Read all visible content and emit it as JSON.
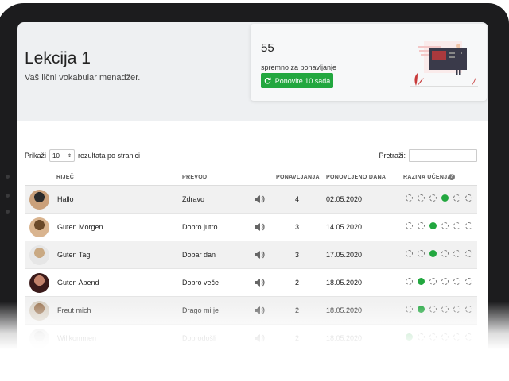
{
  "header": {
    "title": "Lekcija 1",
    "subtitle": "Vaš lični vokabular menadžer."
  },
  "review": {
    "count": "55",
    "label": "spremno za ponavljanje",
    "button_label": "Ponovite 10 sada"
  },
  "controls": {
    "show_label": "Prikaži",
    "page_size": "10",
    "per_page_label": "rezultata po stranici",
    "search_label": "Pretraži:",
    "search_value": ""
  },
  "table": {
    "headers": {
      "word": "RIJEČ",
      "translation": "PREVOD",
      "repetitions": "PONAVLJANJA",
      "repeated_on": "PONOVLJENO DANA",
      "level": "RAZINA UČENJA"
    },
    "rows": [
      {
        "word": "Hallo",
        "translation": "Zdravo",
        "repetitions": "4",
        "date": "02.05.2020",
        "level": 4
      },
      {
        "word": "Guten Morgen",
        "translation": "Dobro jutro",
        "repetitions": "3",
        "date": "14.05.2020",
        "level": 3
      },
      {
        "word": "Guten Tag",
        "translation": "Dobar dan",
        "repetitions": "3",
        "date": "17.05.2020",
        "level": 3
      },
      {
        "word": "Guten Abend",
        "translation": "Dobro veče",
        "repetitions": "2",
        "date": "18.05.2020",
        "level": 2
      },
      {
        "word": "Freut mich",
        "translation": "Drago mi je",
        "repetitions": "2",
        "date": "18.05.2020",
        "level": 2
      },
      {
        "word": "Willkommen",
        "translation": "Dobrodošli",
        "repetitions": "2",
        "date": "18.05.2020",
        "level": 1
      }
    ]
  },
  "colors": {
    "accent": "#22a73f",
    "device": "#1c1c1e"
  },
  "icons": {
    "review_button": "refresh-icon",
    "audio": "speaker-icon",
    "level_help": "question-circle-icon"
  }
}
